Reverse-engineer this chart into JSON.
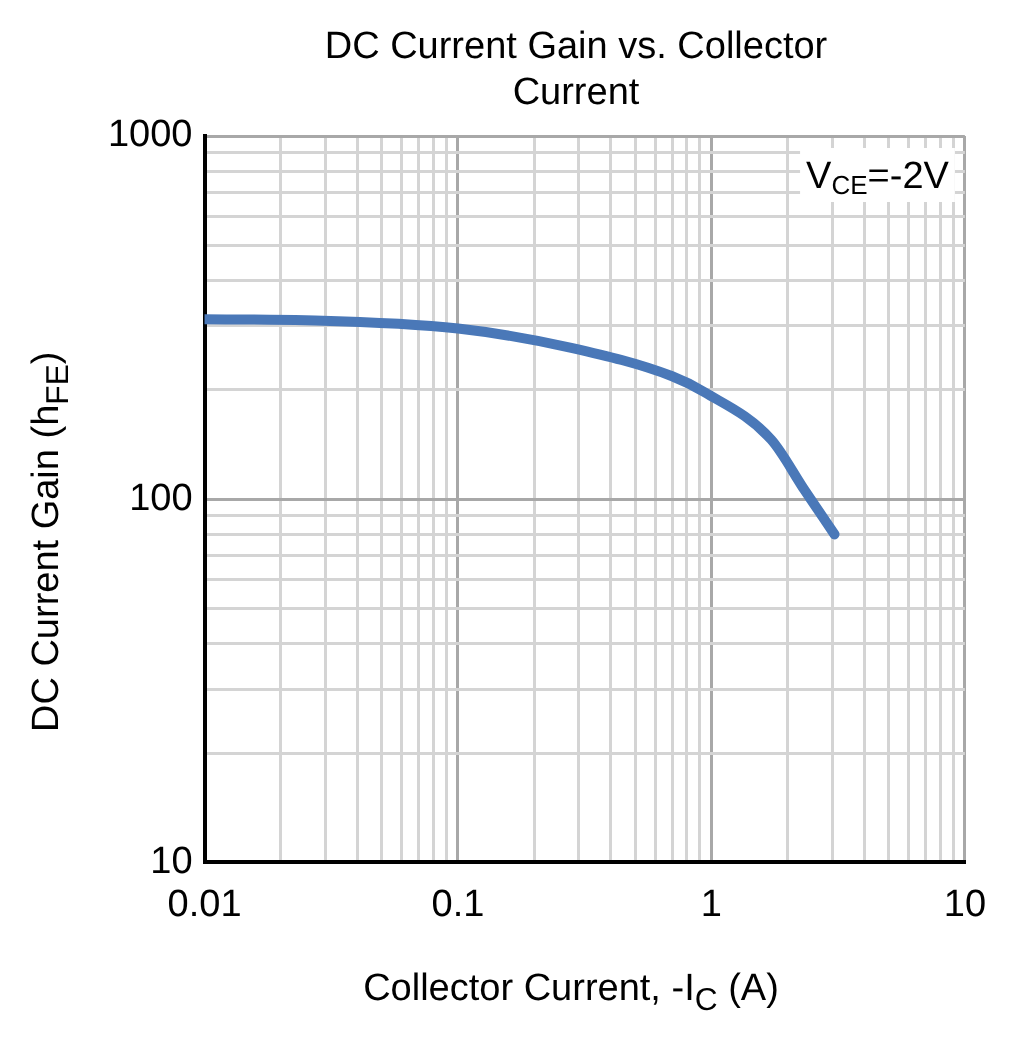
{
  "chart_data": {
    "type": "line",
    "title": "DC Current Gain vs. Collector Current",
    "xlabel": "Collector Current, -I$_{C}$ (A)",
    "ylabel": "DC Current Gain (h$_{FE}$)",
    "log": "xy",
    "grid": true,
    "marker": "none",
    "line_style": "solid",
    "legend": false,
    "x": [
      0.01,
      0.025,
      0.1,
      0.28,
      0.7,
      0.94,
      1.72,
      2.33,
      3.06
    ],
    "series": [
      {
        "color": "#4a78b8",
        "values": [
          313,
          311,
          295,
          261,
          218,
          197,
          146,
          106,
          80
        ]
      }
    ],
    "xlim": [
      0.01,
      10
    ],
    "ylim": [
      10,
      1000
    ],
    "xticks": [
      0.01,
      {
        "value": 0.02,
        "label": null
      },
      {
        "value": 0.03,
        "label": null
      },
      {
        "value": 0.04,
        "label": null
      },
      {
        "value": 0.05,
        "label": null
      },
      {
        "value": 0.06,
        "label": null
      },
      {
        "value": 0.07,
        "label": null
      },
      {
        "value": 0.08,
        "label": null
      },
      {
        "value": 0.09,
        "label": null
      },
      0.1,
      {
        "value": 0.2,
        "label": null
      },
      {
        "value": 0.3,
        "label": null
      },
      {
        "value": 0.4,
        "label": null
      },
      {
        "value": 0.5,
        "label": null
      },
      {
        "value": 0.6,
        "label": null
      },
      {
        "value": 0.7,
        "label": null
      },
      {
        "value": 0.8,
        "label": null
      },
      {
        "value": 0.9,
        "label": null
      },
      1,
      {
        "value": 2,
        "label": null
      },
      {
        "value": 3,
        "label": null
      },
      {
        "value": 4,
        "label": null
      },
      {
        "value": 5,
        "label": null
      },
      {
        "value": 6,
        "label": null
      },
      {
        "value": 7,
        "label": null
      },
      {
        "value": 8,
        "label": null
      },
      {
        "value": 9,
        "label": null
      },
      10
    ],
    "yticks": [
      10,
      {
        "value": 20,
        "label": null
      },
      {
        "value": 30,
        "label": null
      },
      {
        "value": 40,
        "label": null
      },
      {
        "value": 50,
        "label": null
      },
      {
        "value": 60,
        "label": null
      },
      {
        "value": 70,
        "label": null
      },
      {
        "value": 80,
        "label": null
      },
      {
        "value": 90,
        "label": null
      },
      100,
      {
        "value": 200,
        "label": null
      },
      {
        "value": 300,
        "label": null
      },
      {
        "value": 400,
        "label": null
      },
      {
        "value": 500,
        "label": null
      },
      {
        "value": 600,
        "label": null
      },
      {
        "value": 700,
        "label": null
      },
      {
        "value": 800,
        "label": null
      },
      {
        "value": 900,
        "label": null
      },
      1000
    ],
    "annotations": [
      "V$_{CE}$=-2V"
    ]
  }
}
